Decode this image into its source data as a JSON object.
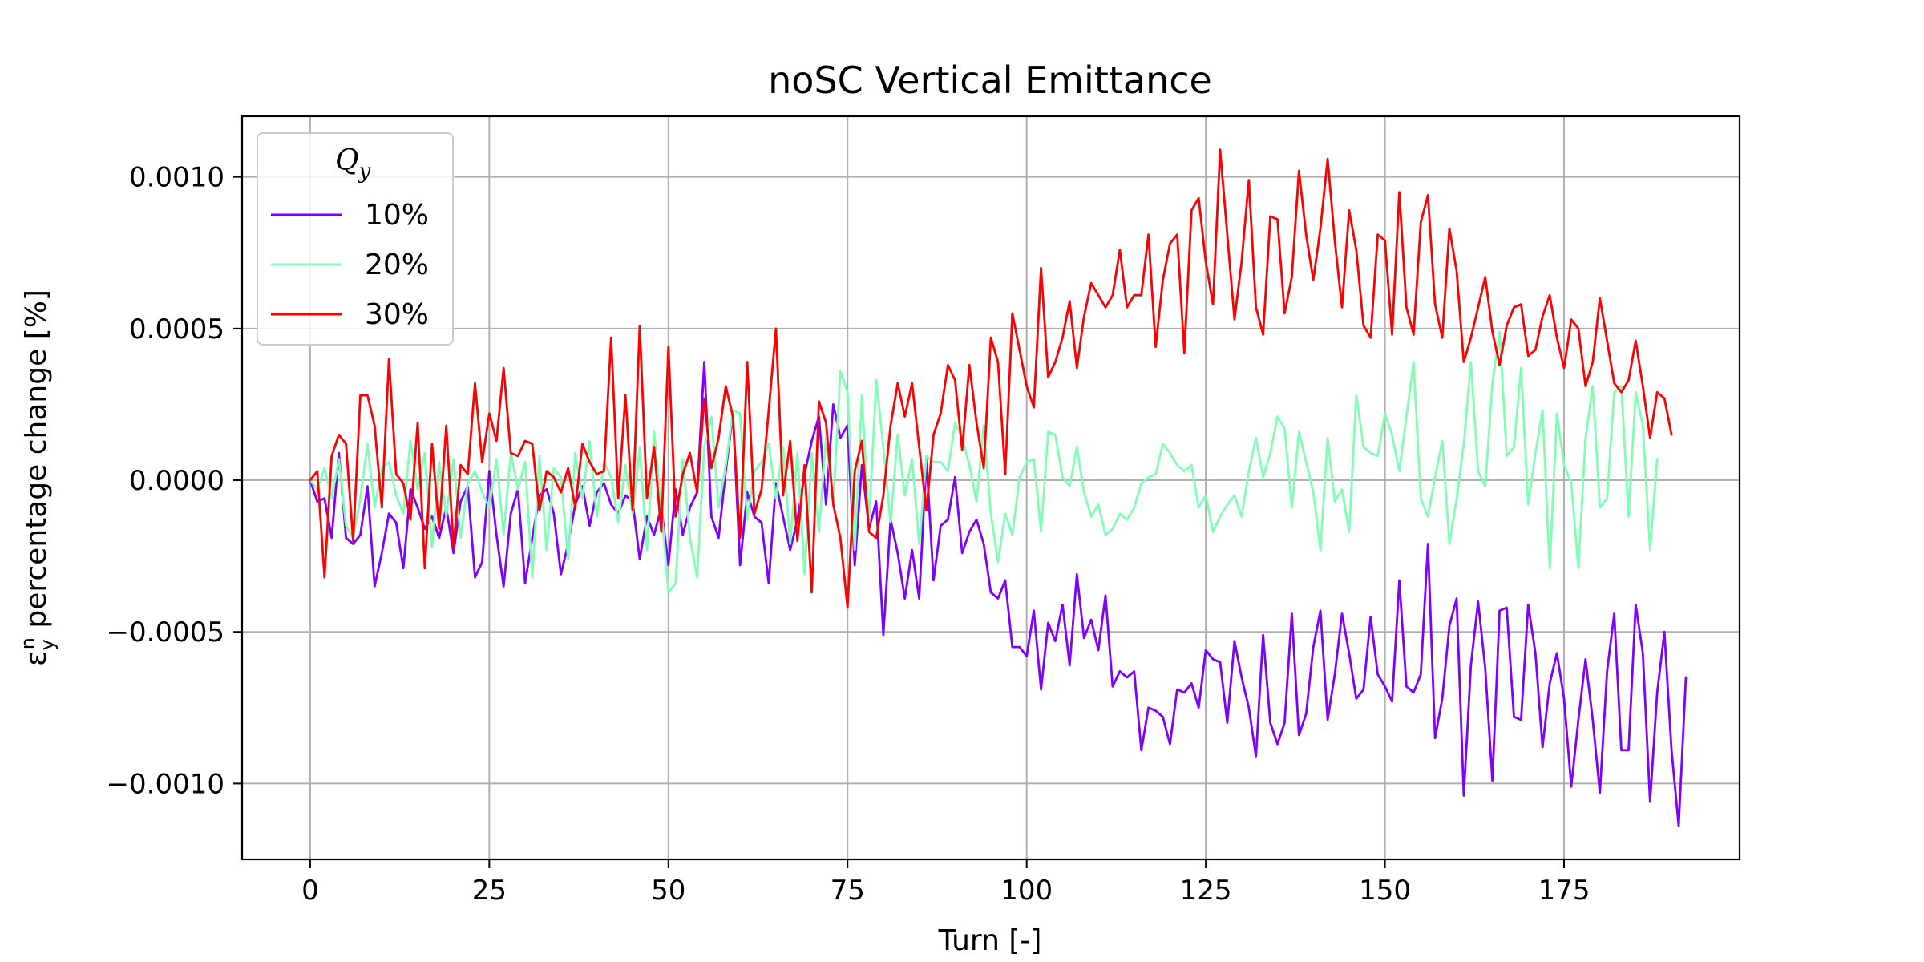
{
  "chart_data": {
    "type": "line",
    "title": "noSC Vertical Emittance",
    "xlabel": "Turn [-]",
    "ylabel": "ε",
    "ylabel_sub": "y",
    "ylabel_sup": "n",
    "ylabel_rest": " percentage change [%]",
    "xlim": [
      -9.5,
      199.5
    ],
    "ylim": [
      -0.00125,
      0.0012
    ],
    "xticks": [
      0,
      25,
      50,
      75,
      100,
      125,
      150,
      175
    ],
    "xtick_labels": [
      "0",
      "25",
      "50",
      "75",
      "100",
      "125",
      "150",
      "175"
    ],
    "yticks": [
      0.001,
      0.0005,
      0.0,
      -0.0005,
      -0.001
    ],
    "ytick_labels": [
      "0.0010",
      "0.0005",
      "0.0000",
      "−0.0005",
      "−0.0010"
    ],
    "grid": true,
    "legend": {
      "placement": "upper-left",
      "title_main": "Q",
      "title_sub": "y"
    },
    "x_start": 0,
    "x_step": 1,
    "series": [
      {
        "name": "10%",
        "color": "#8000ff",
        "values": [
          0,
          -7e-05,
          -6e-05,
          -0.00019,
          9e-05,
          -0.00019,
          -0.00021,
          -0.00018,
          -2e-05,
          -0.00035,
          -0.00024,
          -0.00011,
          -0.00014,
          -0.00029,
          -3e-05,
          -9e-05,
          -0.00016,
          -0.00012,
          -0.00019,
          -9e-05,
          -0.00024,
          -7e-05,
          -2e-05,
          -0.00032,
          -0.00027,
          3e-05,
          -0.00018,
          -0.00035,
          -0.00011,
          -3e-05,
          -0.00034,
          -0.00019,
          -5e-05,
          -3e-05,
          -0.00011,
          -0.00031,
          -0.00021,
          -8e-05,
          -2e-05,
          -0.00015,
          -4e-05,
          -1e-05,
          -8e-05,
          -0.00011,
          -5e-05,
          -7e-05,
          -0.00026,
          -0.00012,
          -0.00018,
          -9e-05,
          -0.00028,
          -3e-05,
          -0.00018,
          -9e-05,
          -4e-05,
          0.00039,
          -0.00012,
          -0.00019,
          3e-05,
          0.00022,
          -0.00028,
          -4e-05,
          -0.00012,
          -0.00014,
          -0.00034,
          -1e-05,
          -0.00012,
          -0.00023,
          -0.00013,
          2e-05,
          0.00013,
          0.00021,
          -8e-05,
          0.00025,
          0.00014,
          0.00018,
          -0.00028,
          5e-05,
          -0.00016,
          -7e-05,
          -0.00051,
          -0.00013,
          -0.00024,
          -0.00039,
          -0.00023,
          -0.00039,
          7e-05,
          -0.00033,
          -0.00015,
          -0.00013,
          1e-05,
          -0.00024,
          -0.00017,
          -0.00013,
          -0.00021,
          -0.00037,
          -0.00039,
          -0.00033,
          -0.00055,
          -0.00055,
          -0.00058,
          -0.00043,
          -0.00069,
          -0.00047,
          -0.00053,
          -0.00041,
          -0.00061,
          -0.00031,
          -0.00052,
          -0.00046,
          -0.00056,
          -0.00038,
          -0.00068,
          -0.00063,
          -0.00065,
          -0.00063,
          -0.00089,
          -0.00075,
          -0.00076,
          -0.00078,
          -0.00087,
          -0.00069,
          -0.0007,
          -0.00067,
          -0.00075,
          -0.00056,
          -0.00059,
          -0.0006,
          -0.0008,
          -0.00053,
          -0.00065,
          -0.00075,
          -0.00091,
          -0.00051,
          -0.0008,
          -0.00087,
          -0.0008,
          -0.00044,
          -0.00084,
          -0.00077,
          -0.00055,
          -0.00043,
          -0.00079,
          -0.00064,
          -0.00044,
          -0.00057,
          -0.00072,
          -0.00069,
          -0.00045,
          -0.00064,
          -0.00068,
          -0.00073,
          -0.00033,
          -0.00068,
          -0.0007,
          -0.00064,
          -0.00021,
          -0.00085,
          -0.00072,
          -0.00048,
          -0.00039,
          -0.00104,
          -0.00061,
          -0.0004,
          -0.00062,
          -0.00099,
          -0.00043,
          -0.00042,
          -0.00078,
          -0.00079,
          -0.00041,
          -0.00057,
          -0.00088,
          -0.00067,
          -0.00057,
          -0.00072,
          -0.00101,
          -0.00079,
          -0.00059,
          -0.00079,
          -0.00103,
          -0.00063,
          -0.00044,
          -0.00089,
          -0.00089,
          -0.00041,
          -0.00057,
          -0.00106,
          -0.0007,
          -0.0005,
          -0.00089,
          -0.00114,
          -0.00065
        ]
      },
      {
        "name": "20%",
        "color": "#80ffb4",
        "values": [
          0,
          -3e-05,
          4e-05,
          -6e-05,
          7e-05,
          -0.00015,
          -0.00019,
          -6e-05,
          0.00012,
          -9e-05,
          4e-05,
          6e-05,
          -5e-05,
          -0.00011,
          0.00013,
          -3e-05,
          9e-05,
          -0.00022,
          6e-05,
          -0.00012,
          7e-05,
          -0.00019,
          -1e-05,
          3e-05,
          -4e-05,
          -9e-05,
          7e-05,
          -0.00018,
          9e-05,
          -3e-05,
          6e-05,
          -0.00032,
          8e-05,
          -0.00023,
          4e-05,
          1e-05,
          -0.00026,
          9e-05,
          -6e-05,
          0.00013,
          -0.00012,
          6e-05,
          1e-05,
          -0.00014,
          5e-05,
          -0.00011,
          0.00011,
          -0.00023,
          0.00016,
          -9e-05,
          -0.00037,
          -0.00034,
          7e-05,
          -0.00019,
          -0.00032,
          0.00011,
          0.00021,
          -9e-05,
          5e-05,
          0.00023,
          0.00022,
          -0.00013,
          3e-05,
          6e-05,
          0.00012,
          -6e-05,
          0.00011,
          -0.00021,
          9e-05,
          -0.00031,
          9e-05,
          -0.00017,
          0.00014,
          -7e-05,
          0.00036,
          0.00029,
          -0.00023,
          0.00028,
          -0.00014,
          0.00033,
          0.00011,
          -0.00014,
          0.00015,
          -5e-05,
          7e-05,
          -0.00021,
          8e-05,
          6e-05,
          6e-05,
          3e-05,
          0.00019,
          0.00014,
          5e-05,
          -7e-05,
          0.00018,
          -0.00011,
          -0.00027,
          -0.00011,
          -0.00018,
          1e-05,
          6e-05,
          7e-05,
          -0.00017,
          0.00016,
          0.00015,
          1e-05,
          -2e-05,
          0.00011,
          -4e-05,
          -0.00012,
          -8e-05,
          -0.00018,
          -0.00016,
          -0.00011,
          -0.00013,
          -9e-05,
          -1e-05,
          1e-05,
          2e-05,
          0.00012,
          9e-05,
          5e-05,
          3e-05,
          5e-05,
          -9e-05,
          -5e-05,
          -0.00017,
          -0.00012,
          -8e-05,
          -5e-05,
          -0.00012,
          3e-05,
          0.00014,
          1e-05,
          9e-05,
          0.00021,
          0.00017,
          -9e-05,
          0.00016,
          6e-05,
          -4e-05,
          -0.00023,
          0.00014,
          -7e-05,
          -3e-05,
          -0.00017,
          0.00028,
          0.00011,
          9e-05,
          8e-05,
          0.00022,
          0.00015,
          3e-05,
          0.00021,
          0.00039,
          -6e-05,
          -0.00012,
          1e-05,
          0.00013,
          -0.00021,
          -6e-05,
          0.00012,
          0.00039,
          3e-05,
          -2e-05,
          0.00032,
          0.00049,
          8e-05,
          0.00011,
          0.00037,
          -8e-05,
          9e-05,
          0.00023,
          -0.00029,
          0.00022,
          5e-05,
          -1e-05,
          -0.00029,
          0.00014,
          0.00031,
          -9e-05,
          -6e-05,
          0.00029,
          0.00031,
          -0.00012,
          0.00029,
          0.00018,
          -0.00023,
          7e-05
        ]
      },
      {
        "name": "30%",
        "color": "#ff0000",
        "values": [
          0,
          3e-05,
          -0.00032,
          8e-05,
          0.00015,
          0.00012,
          -0.0002,
          0.00028,
          0.00028,
          0.00018,
          -9e-05,
          0.0004,
          2e-05,
          -1e-05,
          -0.00013,
          0.00019,
          -0.00029,
          0.00012,
          -0.00016,
          0.00018,
          -0.00022,
          5e-05,
          2e-05,
          0.00032,
          6e-05,
          0.00022,
          0.00013,
          0.00037,
          9e-05,
          8e-05,
          0.00013,
          0.00012,
          -0.0001,
          3e-05,
          1e-05,
          -4e-05,
          4e-05,
          -9e-05,
          0.00012,
          6e-05,
          2e-05,
          3e-05,
          0.00047,
          -6e-05,
          0.00028,
          -0.0001,
          0.00051,
          -6e-05,
          0.00011,
          -0.00017,
          0.00044,
          -0.00012,
          2e-05,
          9e-05,
          -4e-05,
          0.00027,
          4e-05,
          0.00014,
          0.00031,
          0.00021,
          -0.00019,
          0.00039,
          -0.00011,
          -3e-05,
          0.00023,
          0.0005,
          -5e-05,
          0.00013,
          -0.0002,
          5e-05,
          -0.00037,
          0.00026,
          0.00019,
          -8e-05,
          -0.00019,
          -0.00042,
          3e-05,
          0.00013,
          -0.00017,
          -0.00019,
          -5e-05,
          0.00018,
          0.00032,
          0.00021,
          0.00032,
          0.00011,
          -0.0001,
          0.00015,
          0.00022,
          0.00038,
          0.00033,
          0.0001,
          0.00038,
          0.00019,
          4e-05,
          0.00047,
          0.00039,
          2e-05,
          0.00055,
          0.00043,
          0.00031,
          0.00024,
          0.0007,
          0.00034,
          0.00039,
          0.00047,
          0.00059,
          0.00037,
          0.00054,
          0.00065,
          0.00061,
          0.00057,
          0.00061,
          0.00076,
          0.00057,
          0.00061,
          0.00061,
          0.00081,
          0.00044,
          0.00066,
          0.00078,
          0.00081,
          0.00042,
          0.00089,
          0.00093,
          0.00072,
          0.00058,
          0.00109,
          0.00081,
          0.00053,
          0.00072,
          0.00099,
          0.00057,
          0.00048,
          0.00087,
          0.00086,
          0.00055,
          0.00067,
          0.00102,
          0.00081,
          0.00066,
          0.00083,
          0.00106,
          0.00079,
          0.00057,
          0.00089,
          0.00076,
          0.00051,
          0.00047,
          0.00081,
          0.00079,
          0.00048,
          0.00095,
          0.00057,
          0.00048,
          0.00085,
          0.00094,
          0.00058,
          0.00047,
          0.00083,
          0.00069,
          0.00039,
          0.00047,
          0.00057,
          0.00067,
          0.00049,
          0.00038,
          0.00051,
          0.00057,
          0.00058,
          0.00041,
          0.00043,
          0.00054,
          0.00061,
          0.00047,
          0.00037,
          0.00053,
          0.0005,
          0.00031,
          0.00039,
          0.0006,
          0.00046,
          0.00032,
          0.00029,
          0.00033,
          0.00046,
          0.00031,
          0.00014,
          0.00029,
          0.00027,
          0.00015
        ]
      }
    ]
  }
}
